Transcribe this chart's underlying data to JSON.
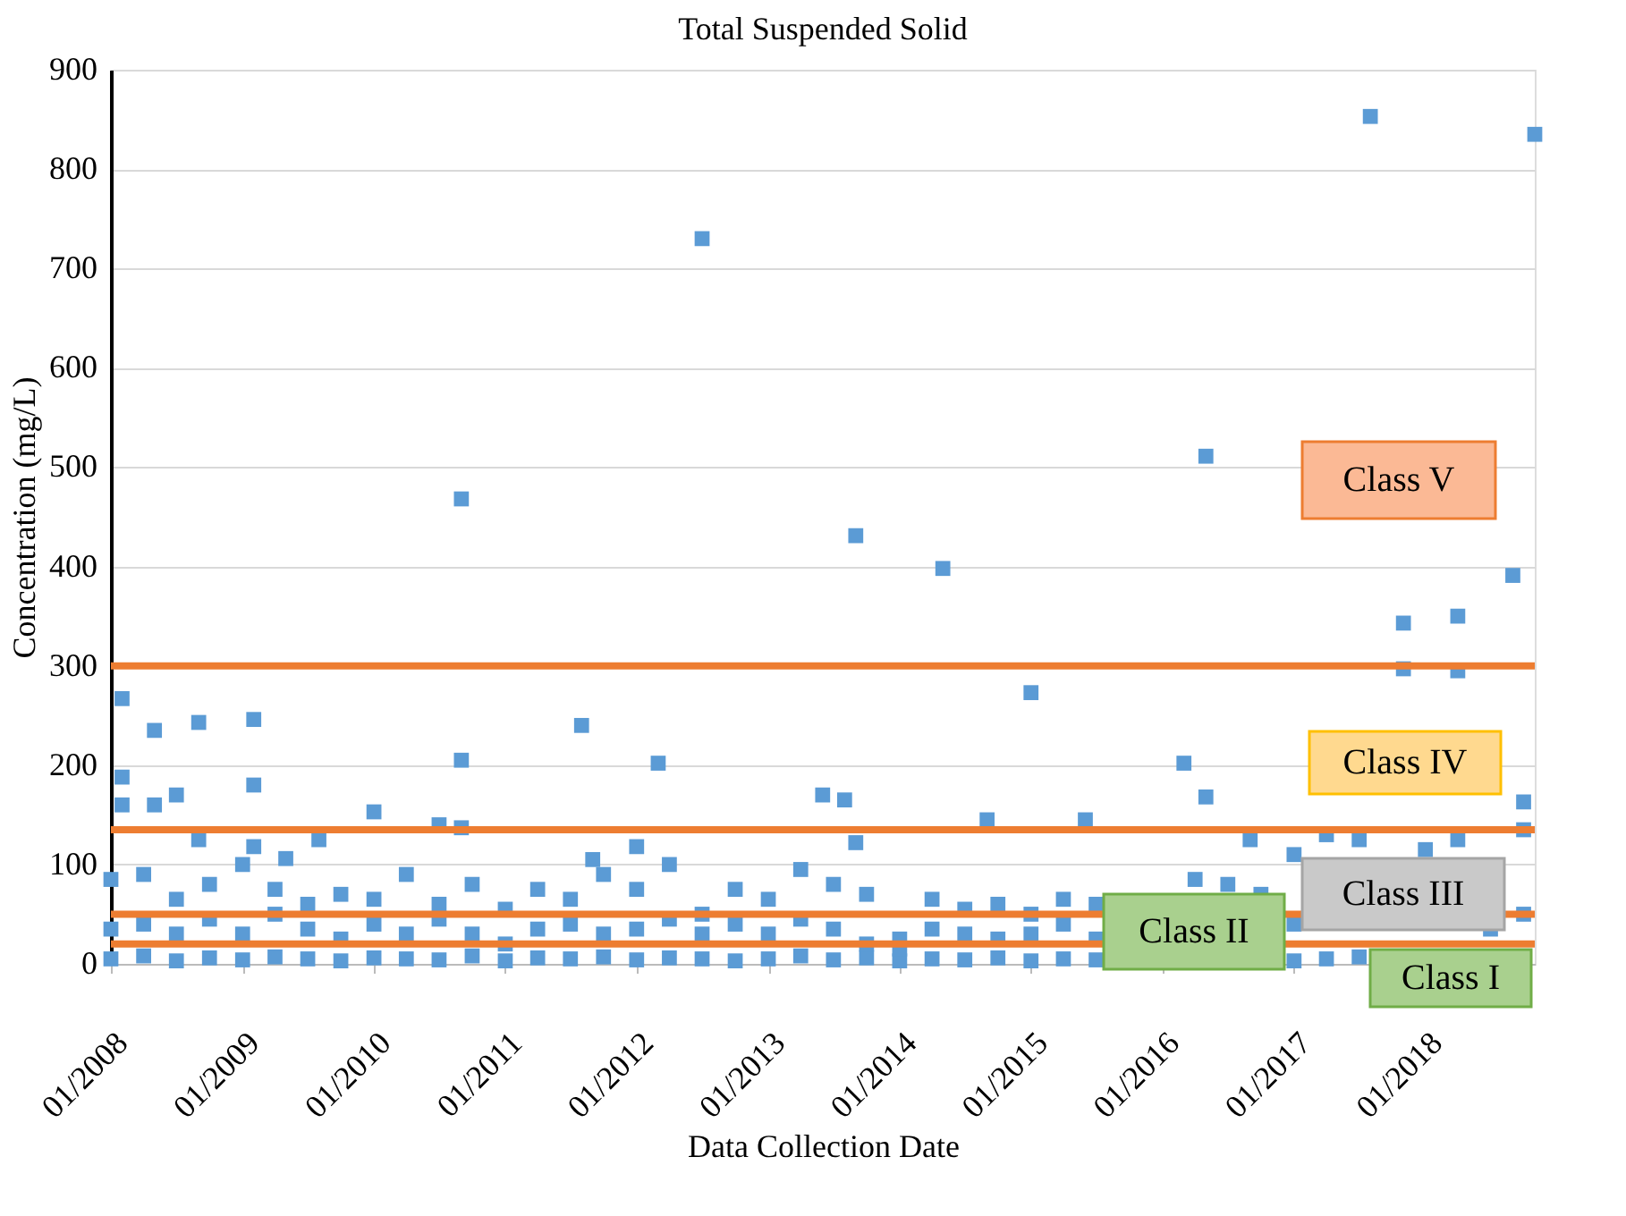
{
  "chart_data": {
    "type": "scatter",
    "title": "Total Suspended Solid",
    "xlabel": "Data Collection Date",
    "ylabel": "Concentration (mg/L)",
    "series": [
      {
        "color": "#5b9bd5",
        "x": [
          "2008-01",
          "2008-01",
          "2008-01",
          "2008-04",
          "2008-04",
          "2008-04",
          "2008-07",
          "2008-07",
          "2008-07",
          "2008-10",
          "2008-10",
          "2008-10",
          "2009-01",
          "2009-01",
          "2009-01",
          "2009-04",
          "2009-04",
          "2009-04",
          "2009-07",
          "2009-07",
          "2009-07",
          "2009-10",
          "2009-10",
          "2009-10",
          "2010-01",
          "2010-01",
          "2010-01",
          "2010-04",
          "2010-04",
          "2010-04",
          "2010-07",
          "2010-07",
          "2010-07",
          "2010-10",
          "2010-10",
          "2010-10",
          "2011-01",
          "2011-01",
          "2011-01",
          "2011-04",
          "2011-04",
          "2011-04",
          "2011-07",
          "2011-07",
          "2011-07",
          "2011-10",
          "2011-10",
          "2011-10",
          "2012-01",
          "2012-01",
          "2012-01",
          "2012-04",
          "2012-04",
          "2012-04",
          "2012-07",
          "2012-07",
          "2012-07",
          "2012-10",
          "2012-10",
          "2012-10",
          "2013-01",
          "2013-01",
          "2013-01",
          "2013-04",
          "2013-04",
          "2013-04",
          "2013-07",
          "2013-07",
          "2013-07",
          "2013-10",
          "2013-10",
          "2013-10",
          "2014-01",
          "2014-01",
          "2014-01",
          "2014-04",
          "2014-04",
          "2014-04",
          "2014-07",
          "2014-07",
          "2014-07",
          "2014-10",
          "2014-10",
          "2014-10",
          "2015-01",
          "2015-01",
          "2015-01",
          "2015-04",
          "2015-04",
          "2015-04",
          "2015-07",
          "2015-07",
          "2015-07",
          "2016-04",
          "2016-07",
          "2016-10",
          "2017-01",
          "2017-01",
          "2017-01",
          "2017-04",
          "2017-04",
          "2017-07",
          "2017-07",
          "2018-01",
          "2018-04",
          "2018-07",
          "2018-10",
          "2018-10",
          "2012-07",
          "2010-09",
          "2017-08",
          "2018-11",
          "2016-05",
          "2013-09",
          "2014-05",
          "2018-09",
          "2017-11",
          "2018-04",
          "2015-01",
          "2016-03",
          "2016-05",
          "2017-11",
          "2018-04",
          "2018-10",
          "2008-02",
          "2008-02",
          "2008-02",
          "2008-05",
          "2008-05",
          "2008-07",
          "2008-09",
          "2008-09",
          "2009-02",
          "2009-02",
          "2009-02",
          "2009-05",
          "2009-08",
          "2010-01",
          "2010-07",
          "2010-09",
          "2010-09",
          "2011-08",
          "2011-09",
          "2012-01",
          "2012-03",
          "2013-06",
          "2013-08",
          "2013-09",
          "2014-09",
          "2015-06",
          "2016-09"
        ],
        "values": [
          5,
          35,
          85,
          8,
          40,
          90,
          3,
          30,
          65,
          6,
          45,
          80,
          4,
          30,
          100,
          7,
          50,
          75,
          5,
          35,
          60,
          3,
          25,
          70,
          6,
          40,
          65,
          5,
          30,
          90,
          4,
          45,
          60,
          8,
          30,
          80,
          3,
          20,
          55,
          6,
          35,
          75,
          5,
          40,
          65,
          7,
          30,
          90,
          4,
          35,
          75,
          6,
          45,
          100,
          5,
          30,
          50,
          3,
          40,
          75,
          5,
          30,
          65,
          8,
          45,
          95,
          4,
          35,
          80,
          6,
          20,
          70,
          3,
          15,
          25,
          5,
          35,
          65,
          4,
          30,
          55,
          6,
          25,
          60,
          3,
          30,
          50,
          5,
          40,
          65,
          4,
          25,
          60,
          85,
          80,
          70,
          3,
          40,
          110,
          5,
          130,
          7,
          125,
          115,
          125,
          35,
          50,
          135,
          730,
          468,
          853,
          835,
          511,
          431,
          398,
          391,
          343,
          350,
          273,
          202,
          168,
          297,
          295,
          163,
          267,
          188,
          160,
          235,
          160,
          170,
          243,
          125,
          246,
          180,
          118,
          106,
          125,
          153,
          140,
          205,
          137,
          240,
          105,
          118,
          202,
          170,
          165,
          122,
          145,
          145,
          125
        ]
      }
    ],
    "xlim": [
      "2008-01",
      "2018-11"
    ],
    "xticks": [
      {
        "value": "2008-01",
        "label": "01/2008"
      },
      {
        "value": "2009-01",
        "label": "01/2009"
      },
      {
        "value": "2010-01",
        "label": "01/2010"
      },
      {
        "value": "2011-01",
        "label": "01/2011"
      },
      {
        "value": "2012-01",
        "label": "01/2012"
      },
      {
        "value": "2013-01",
        "label": "01/2013"
      },
      {
        "value": "2014-01",
        "label": "01/2014"
      },
      {
        "value": "2015-01",
        "label": "01/2015"
      },
      {
        "value": "2016-01",
        "label": "01/2016"
      },
      {
        "value": "2017-01",
        "label": "01/2017"
      },
      {
        "value": "2018-01",
        "label": "01/2018"
      }
    ],
    "ylim": [
      0,
      900
    ],
    "yticks": [
      0,
      100,
      200,
      300,
      400,
      500,
      600,
      700,
      800,
      900
    ],
    "grid": "y",
    "marker": "square",
    "ref_lines": [
      {
        "axis": "y",
        "value": 300,
        "color": "#ed7d31"
      },
      {
        "axis": "y",
        "value": 135,
        "color": "#ed7d31"
      },
      {
        "axis": "y",
        "value": 50,
        "color": "#ed7d31"
      },
      {
        "axis": "y",
        "value": 20,
        "color": "#ed7d31"
      }
    ],
    "annotations": [
      "Class V",
      "Class IV",
      "Class III",
      "Class II",
      "Class I"
    ]
  }
}
